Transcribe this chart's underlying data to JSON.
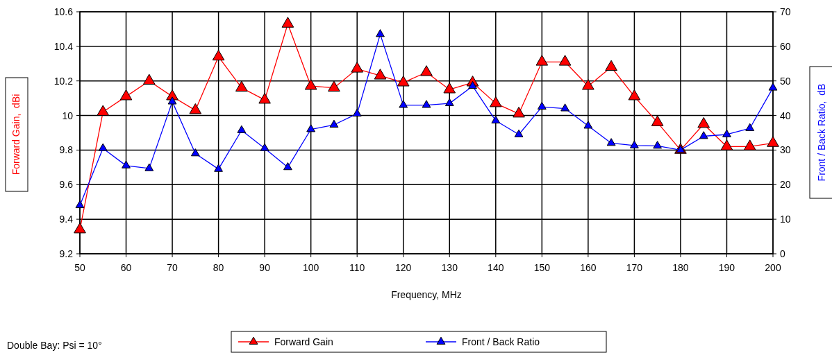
{
  "chart_data": {
    "type": "line",
    "xlabel": "Frequency, MHz",
    "ylabel": "Forward Gain,  dBi",
    "y2label": "Front / Back Ratio,  dB",
    "x": [
      50,
      55,
      60,
      65,
      70,
      75,
      80,
      85,
      90,
      95,
      100,
      105,
      110,
      115,
      120,
      125,
      130,
      135,
      140,
      145,
      150,
      155,
      160,
      165,
      170,
      175,
      180,
      185,
      190,
      195,
      200
    ],
    "series": [
      {
        "name": "Forward Gain",
        "color": "#ff0000",
        "values": [
          9.34,
          10.02,
          10.11,
          10.2,
          10.11,
          10.03,
          10.34,
          10.16,
          10.09,
          10.53,
          10.17,
          10.16,
          10.27,
          10.23,
          10.19,
          10.25,
          10.15,
          10.19,
          10.07,
          10.01,
          10.31,
          10.31,
          10.17,
          10.28,
          10.11,
          9.96,
          9.8,
          9.95,
          9.82,
          9.82,
          9.84
        ]
      },
      {
        "name": "Front / Back Ratio",
        "color": "#0000ff",
        "axis": "y2",
        "values": [
          14,
          30.5,
          25.5,
          24.7,
          44,
          29,
          24.5,
          35.7,
          30.5,
          25,
          36,
          37.3,
          40.5,
          63.5,
          43,
          43,
          43.5,
          48.5,
          38.5,
          34.5,
          42.5,
          42,
          37,
          32,
          31.3,
          31.2,
          30,
          34,
          34.5,
          36.3,
          48
        ]
      }
    ],
    "xlim": [
      50,
      200
    ],
    "xticks": [
      50,
      60,
      70,
      80,
      90,
      100,
      110,
      120,
      130,
      140,
      150,
      160,
      170,
      180,
      190,
      200
    ],
    "ylim": [
      9.2,
      10.6
    ],
    "yticks": [
      {
        "value": 9.2,
        "label": "9.2"
      },
      {
        "value": 9.4,
        "label": "9.4"
      },
      {
        "value": 9.6,
        "label": "9.6"
      },
      {
        "value": 9.8,
        "label": "9.8"
      },
      {
        "value": 10,
        "label": "10"
      },
      {
        "value": 10.2,
        "label": "10.2"
      },
      {
        "value": 10.4,
        "label": "10.4"
      },
      {
        "value": 10.6,
        "label": "10.6"
      }
    ],
    "y2lim": [
      0,
      70
    ],
    "y2ticks": [
      0,
      10,
      20,
      30,
      40,
      50,
      60,
      70
    ],
    "grid": true,
    "legend": "bottom",
    "marker": "triangle",
    "line_style": "solid",
    "annotations": [
      "Double Bay: Psi = 10°"
    ]
  }
}
